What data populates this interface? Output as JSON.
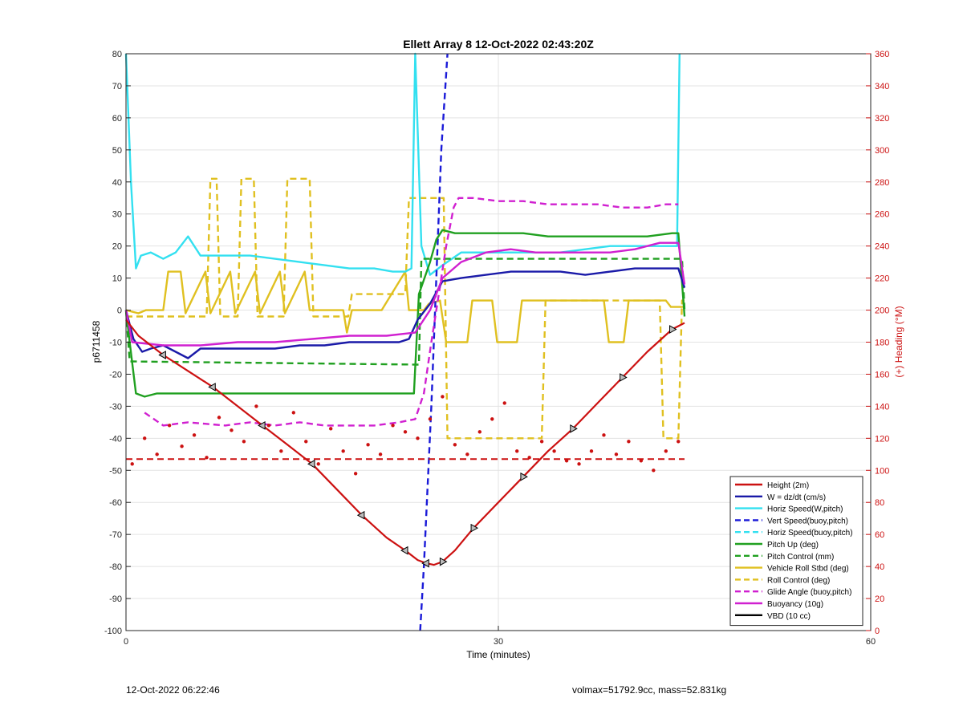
{
  "chart_data": {
    "type": "line",
    "title": "Ellett Array 8 12-Oct-2022 02:43:20Z",
    "xlabel": "Time (minutes)",
    "ylabel": "p6711458",
    "y2label": "(+) Heading (°M)",
    "xlim": [
      0,
      60
    ],
    "ylim": [
      -100,
      80
    ],
    "y2lim": [
      0,
      360
    ],
    "xticks": [
      0,
      30,
      60
    ],
    "yticks": [
      -100,
      -90,
      -80,
      -70,
      -60,
      -50,
      -40,
      -30,
      -20,
      -10,
      0,
      10,
      20,
      30,
      40,
      50,
      60,
      70,
      80
    ],
    "y2ticks": [
      0,
      20,
      40,
      60,
      80,
      100,
      120,
      140,
      160,
      180,
      200,
      220,
      240,
      260,
      280,
      300,
      320,
      340,
      360
    ],
    "grid": true,
    "legend_position": "bottom-right",
    "series": [
      {
        "name": "Height (2m)",
        "color": "#cc1111",
        "style": "solid",
        "x": [
          0,
          1,
          3,
          5,
          7,
          9,
          11,
          13,
          15,
          17,
          19,
          21,
          22.5,
          23.5,
          24.2,
          24.8,
          25.5,
          26.5,
          28,
          30,
          32,
          34,
          36,
          38,
          40,
          42,
          44,
          45
        ],
        "y": [
          -3,
          -8,
          -14,
          -19,
          -24,
          -30,
          -36,
          -42,
          -48,
          -56,
          -64,
          -71,
          -75,
          -78,
          -79,
          -79.5,
          -78.5,
          -75,
          -68,
          -60,
          -52,
          -44,
          -37,
          -29,
          -21,
          -13,
          -6,
          -4
        ]
      },
      {
        "name": "W = dz/dt (cm/s)",
        "color": "#1a1aa8",
        "style": "solid",
        "x": [
          0,
          0.6,
          1.3,
          2,
          3,
          4,
          5,
          6,
          8,
          10,
          12,
          14,
          16,
          18,
          20,
          22,
          22.8,
          23.5,
          24.5,
          25.5,
          27,
          29,
          31,
          33,
          35,
          37,
          39,
          41,
          43,
          44.5,
          45
        ],
        "y": [
          0,
          -9,
          -13,
          -12,
          -11,
          -13,
          -15,
          -12,
          -12,
          -12,
          -12,
          -11,
          -11,
          -10,
          -10,
          -10,
          -9,
          -3,
          2,
          9,
          10,
          11,
          12,
          12,
          12,
          11,
          12,
          13,
          13,
          13,
          7
        ]
      },
      {
        "name": "Horiz Speed(W,pitch)",
        "color": "#33e0f0",
        "style": "solid",
        "x": [
          0,
          0.4,
          0.8,
          1.2,
          2,
          3,
          4,
          5,
          6,
          8,
          10,
          12,
          14,
          16,
          18,
          20,
          21.5,
          22.5,
          23,
          23.3,
          23.8,
          24.5,
          25.5,
          27,
          29,
          31,
          33,
          35,
          37,
          39,
          41,
          43,
          44.4,
          44.6
        ],
        "y": [
          80,
          40,
          13,
          17,
          18,
          16,
          18,
          23,
          17,
          17,
          17,
          16,
          15,
          14,
          13,
          13,
          12,
          12,
          13,
          80,
          20,
          11,
          14,
          18,
          18,
          18,
          18,
          18,
          19,
          20,
          20,
          20,
          20,
          80
        ]
      },
      {
        "name": "Vert Speed(buoy,pitch)",
        "color": "#1a1ad8",
        "style": "dashed",
        "x": [
          23.7,
          24.0,
          24.6,
          25.0,
          25.4,
          25.9
        ],
        "y": [
          -100,
          -80,
          -30,
          10,
          50,
          80
        ]
      },
      {
        "name": "Horiz Speed(buoy,pitch)",
        "color": "#33e0f0",
        "style": "dashed",
        "x": [],
        "y": []
      },
      {
        "name": "Pitch Up (deg)",
        "color": "#20a020",
        "style": "solid",
        "x": [
          0,
          0.3,
          0.8,
          1.5,
          2.5,
          4,
          6,
          8,
          10,
          12,
          14,
          16,
          18,
          20,
          22,
          23.2,
          23.6,
          24.5,
          25,
          25.5,
          26.5,
          28,
          30,
          32,
          34,
          36,
          38,
          40,
          42,
          44,
          44.5,
          45
        ],
        "y": [
          0,
          -10,
          -26,
          -27,
          -26,
          -26,
          -26,
          -26,
          -26,
          -26,
          -26,
          -26,
          -26,
          -26,
          -26,
          -26,
          5,
          15,
          22,
          25,
          24,
          24,
          24,
          24,
          23,
          23,
          23,
          23,
          23,
          24,
          24,
          -2
        ]
      },
      {
        "name": "Pitch Control (mm)",
        "color": "#20a020",
        "style": "dashed",
        "x": [
          0,
          0.3,
          23.6,
          23.8,
          44.8,
          45
        ],
        "y": [
          0,
          -16,
          -17,
          16,
          16,
          0
        ]
      },
      {
        "name": "Vehicle Roll Stbd (deg)",
        "color": "#e0c020",
        "style": "solid",
        "x": [
          0,
          1,
          1.6,
          3,
          3.4,
          4.4,
          4.8,
          6.4,
          6.8,
          8.4,
          8.8,
          10.4,
          10.8,
          12.4,
          12.8,
          14.4,
          14.8,
          17.5,
          17.8,
          18.2,
          18.6,
          20.2,
          20.6,
          22.5,
          22.8,
          24.0,
          24.4,
          25.3,
          25.8,
          27.5,
          27.9,
          29.5,
          29.9,
          31.5,
          31.9,
          38.5,
          38.9,
          40.1,
          40.5,
          43.5,
          43.9,
          45
        ],
        "y": [
          0,
          -1,
          0,
          0,
          12,
          12,
          -1,
          12,
          -1,
          12,
          -1,
          12,
          -1,
          12,
          -1,
          12,
          0,
          0,
          -7,
          0,
          0,
          0,
          0,
          12,
          0,
          0,
          2,
          3,
          -10,
          -10,
          3,
          3,
          -10,
          -10,
          3,
          3,
          -10,
          -10,
          3,
          3,
          1,
          1
        ]
      },
      {
        "name": "Roll Control (deg)",
        "color": "#e0c020",
        "style": "dashed",
        "x": [
          0,
          6.5,
          6.8,
          7.3,
          7.6,
          9.0,
          9.3,
          10.3,
          10.6,
          12.7,
          13.0,
          14.8,
          15.1,
          17.9,
          18.2,
          22.5,
          22.8,
          25.6,
          25.9,
          33.5,
          33.8,
          43.0,
          43.3,
          44.5,
          44.8,
          45
        ],
        "y": [
          -2,
          -2,
          41,
          41,
          -2,
          -2,
          41,
          41,
          -2,
          -2,
          41,
          41,
          -2,
          -2,
          5,
          5,
          35,
          35,
          -40,
          -40,
          3,
          3,
          -40,
          -40,
          3,
          3
        ]
      },
      {
        "name": "Glide Angle (buoy,pitch)",
        "color": "#d020d0",
        "style": "dashed",
        "x": [
          1.5,
          3,
          5,
          8,
          10,
          12,
          14,
          16,
          18,
          20,
          22,
          23.3,
          24,
          24.6,
          25.2,
          25.8,
          26.4,
          26.8,
          28,
          30,
          32,
          34,
          36,
          38,
          40,
          42,
          43.5,
          44.5
        ],
        "y": [
          -32,
          -36,
          -35,
          -36,
          -35,
          -36,
          -35,
          -36,
          -36,
          -36,
          -35,
          -34,
          -26,
          -10,
          5,
          20,
          32,
          35,
          35,
          34,
          34,
          33,
          33,
          33,
          32,
          32,
          33,
          33
        ]
      },
      {
        "name": "Buoyancy (10g)",
        "color": "#d020d0",
        "style": "solid",
        "x": [
          0,
          0.5,
          3,
          6,
          9,
          12,
          15,
          18,
          21,
          23.3,
          24.5,
          25.5,
          27,
          29,
          31,
          33,
          35,
          37,
          39,
          41,
          43,
          44.5,
          45
        ],
        "y": [
          0,
          -10,
          -11,
          -11,
          -10,
          -10,
          -9,
          -8,
          -8,
          -7,
          0,
          10,
          15,
          18,
          19,
          18,
          18,
          18,
          18,
          19,
          21,
          21,
          8
        ]
      },
      {
        "name": "VBD (10 cc)",
        "color": "#000000",
        "style": "solid",
        "x": [
          0,
          0.5,
          2,
          6,
          10,
          14,
          18,
          22,
          23.3,
          24.5,
          25.5,
          26.5,
          28,
          30,
          32,
          34,
          36,
          38,
          40,
          42,
          44,
          44.8,
          45
        ],
        "y": [
          0,
          -11,
          -11,
          -11,
          -11,
          -11,
          -11,
          -11,
          -11,
          -3,
          7,
          11,
          11,
          13,
          14,
          15,
          15,
          17,
          19,
          20,
          20,
          20,
          7
        ]
      }
    ],
    "heading": {
      "name": "(+) Heading (°M)",
      "axis": "right",
      "color": "#cc1111",
      "markers_x": [
        0.5,
        1.5,
        2.5,
        3.5,
        4.5,
        5.5,
        6.5,
        7.5,
        8.5,
        9.5,
        10.5,
        11.5,
        12.5,
        13.5,
        14.5,
        15.5,
        16.5,
        17.5,
        18.5,
        19.5,
        20.5,
        21.5,
        22.5,
        23.5,
        24.5,
        25.5,
        26.5,
        27.5,
        28.5,
        29.5,
        30.5,
        31.5,
        32.5,
        33.5,
        34.5,
        35.5,
        36.5,
        37.5,
        38.5,
        39.5,
        40.5,
        41.5,
        42.5,
        43.5,
        44.5
      ],
      "markers_y": [
        104,
        120,
        110,
        128,
        115,
        122,
        108,
        133,
        125,
        118,
        140,
        128,
        112,
        136,
        118,
        104,
        126,
        112,
        98,
        116,
        110,
        128,
        124,
        120,
        132,
        146,
        116,
        110,
        124,
        132,
        142,
        112,
        108,
        118,
        112,
        106,
        104,
        112,
        122,
        110,
        118,
        106,
        100,
        112,
        118
      ],
      "reference_x": [
        0,
        45
      ],
      "reference_y": [
        107,
        107
      ]
    }
  },
  "footer": {
    "timestamp": "12-Oct-2022 06:22:46",
    "summary": "volmax=51792.9cc, mass=52.831kg"
  }
}
